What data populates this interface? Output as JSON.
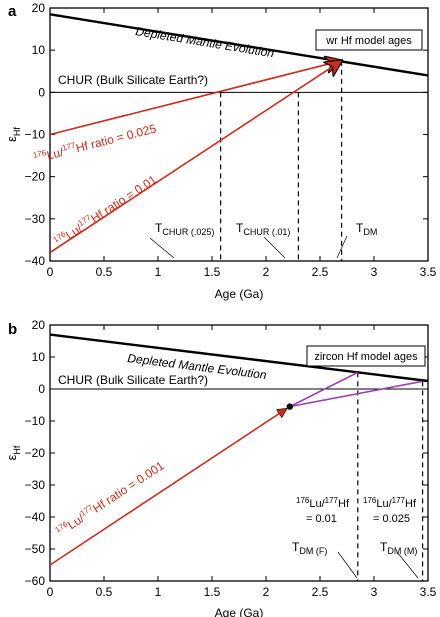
{
  "chart_data": [
    {
      "panel": "a",
      "type": "line",
      "box_label": "wr Hf model ages",
      "xlabel": "Age (Ga)",
      "ylabel_main": "ε",
      "ylabel_sub": "Hf",
      "xlim": [
        0,
        3.5
      ],
      "ylim": [
        -40,
        20
      ],
      "xticks": [
        0,
        0.5,
        1,
        1.5,
        2,
        2.5,
        3,
        3.5
      ],
      "xtick_labels": [
        "0",
        "0.5",
        "1",
        "1.5",
        "2",
        "2.5",
        "3",
        "3.5"
      ],
      "yticks": [
        -40,
        -30,
        -20,
        -10,
        0,
        10,
        20
      ],
      "ytick_labels": [
        "−40",
        "−30",
        "−20",
        "−10",
        "0",
        "10",
        "20"
      ],
      "dm": {
        "label": "Depleted Mantle Evolution",
        "x": [
          0,
          3.5
        ],
        "y": [
          18.5,
          4
        ],
        "color": "#000000"
      },
      "chur": {
        "label": "CHUR (Bulk Silicate Earth?)",
        "y": 0
      },
      "series": [
        {
          "label_sup1": "176",
          "label_mid1": "Lu/",
          "label_sup2": "177",
          "label_mid2": "Hf ratio = 0.025",
          "x": [
            0,
            2.7
          ],
          "y": [
            -10,
            7.5
          ],
          "color": "#cc2b1d"
        },
        {
          "label_sup1": "176",
          "label_mid1": "Lu/",
          "label_sup2": "177",
          "label_mid2": "Hf ratio = 0.01",
          "x": [
            0,
            2.7
          ],
          "y": [
            -38,
            7.5
          ],
          "color": "#cc2b1d"
        }
      ],
      "vlines": [
        {
          "x": 1.58,
          "label_main": "T",
          "label_sub": "CHUR (.025)"
        },
        {
          "x": 2.3,
          "label_main": "T",
          "label_sub": "CHUR (.01)"
        },
        {
          "x": 2.7,
          "label_main": "T",
          "label_sub": "DM"
        }
      ]
    },
    {
      "panel": "b",
      "type": "line",
      "box_label": "zircon Hf model ages",
      "xlabel": "Age (Ga)",
      "ylabel_main": "ε",
      "ylabel_sub": "Hf",
      "xlim": [
        0,
        3.5
      ],
      "ylim": [
        -60,
        20
      ],
      "xticks": [
        0,
        0.5,
        1,
        1.5,
        2,
        2.5,
        3,
        3.5
      ],
      "xtick_labels": [
        "0",
        "0.5",
        "1",
        "1.5",
        "2",
        "2.5",
        "3",
        "3.5"
      ],
      "yticks": [
        -60,
        -50,
        -40,
        -30,
        -20,
        -10,
        0,
        10,
        20
      ],
      "ytick_labels": [
        "−60",
        "−50",
        "−40",
        "−30",
        "−20",
        "−10",
        "0",
        "10",
        "20"
      ],
      "dm": {
        "label": "Depleted Mantle Evolution",
        "x": [
          0,
          3.5
        ],
        "y": [
          17,
          2.5
        ],
        "color": "#000000"
      },
      "chur": {
        "label": "CHUR (Bulk Silicate Earth?)",
        "y": 0
      },
      "series": [
        {
          "label_sup1": "176",
          "label_mid1": "Lu/",
          "label_sup2": "177",
          "label_mid2": "Hf ratio = 0.001",
          "x": [
            0,
            2.22
          ],
          "y": [
            -55,
            -5.5
          ],
          "color": "#cc2b1d"
        }
      ],
      "branches": [
        {
          "x": [
            2.22,
            2.85
          ],
          "y": [
            -5.5,
            5.2
          ],
          "color": "#9b3fb5"
        },
        {
          "x": [
            2.22,
            3.45
          ],
          "y": [
            -5.5,
            2.4
          ],
          "color": "#9b3fb5"
        }
      ],
      "point": {
        "x": 2.22,
        "y": -5.5
      },
      "vlines": [
        {
          "x": 2.85,
          "label_main": "T",
          "label_sub": "DM (F)",
          "ratio_sup": "176",
          "ratio_mid": "Lu/",
          "ratio_sup2": "177",
          "ratio_end": "Hf",
          "ratio_value": "= 0.01"
        },
        {
          "x": 3.45,
          "label_main": "T",
          "label_sub": "DM (M)",
          "ratio_sup": "176",
          "ratio_mid": "Lu/",
          "ratio_sup2": "177",
          "ratio_end": "Hf",
          "ratio_value": "= 0.025"
        }
      ]
    }
  ]
}
